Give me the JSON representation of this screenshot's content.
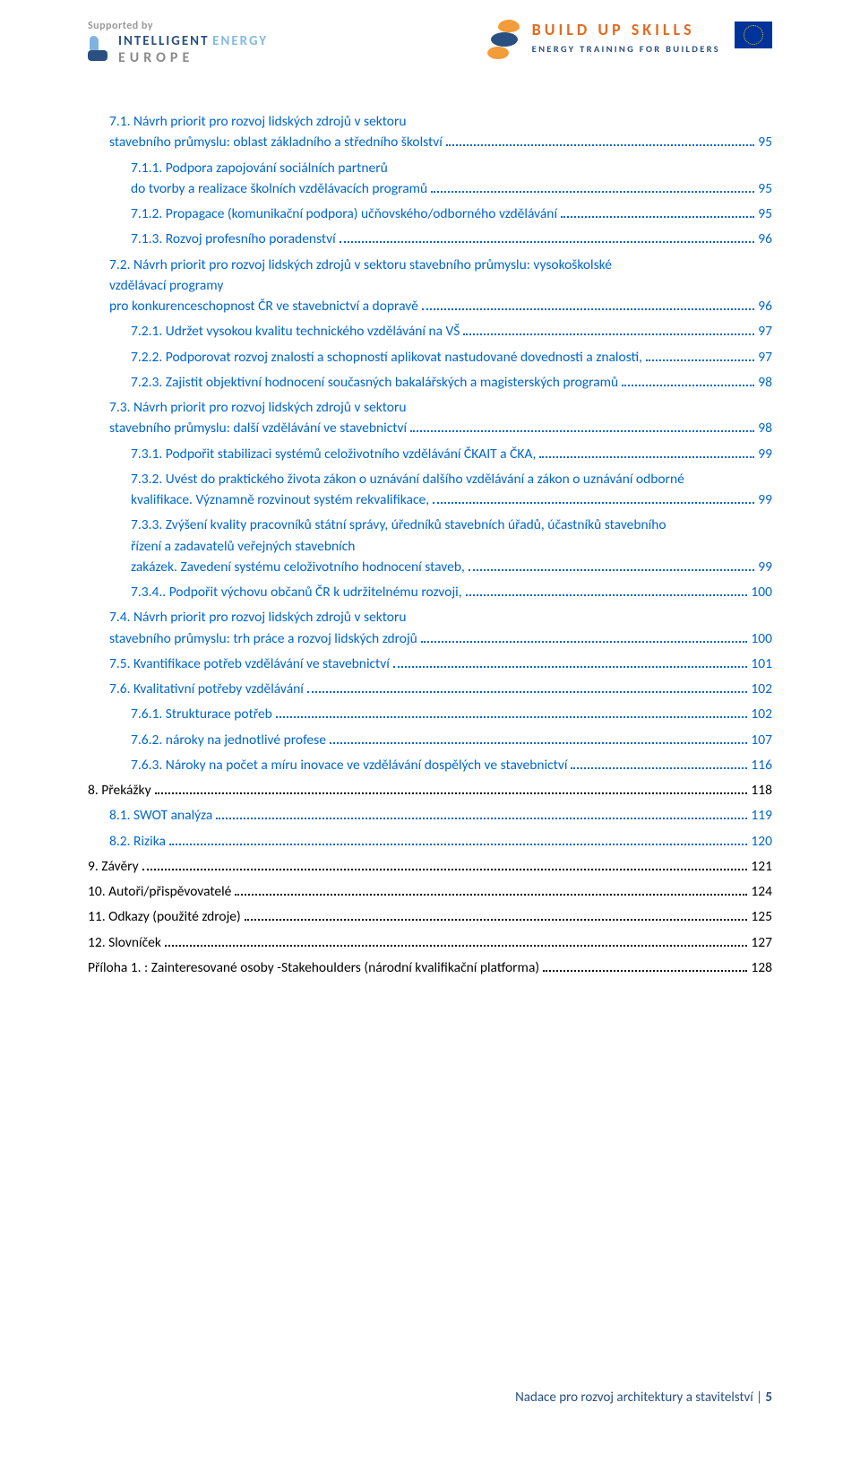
{
  "header": {
    "supported": "Supported by",
    "intelligent": "INTELLIGENT",
    "energy": "ENERGY",
    "europe": "EUROPE",
    "bus_title": "BUILD UP SKILLS",
    "bus_sub": "ENERGY TRAINING FOR BUILDERS"
  },
  "colors": {
    "link": "#0066cc",
    "text": "#000000",
    "footer": "#2a5082",
    "orange_brand": "#e26b1f",
    "navy_brand": "#2a5082"
  },
  "toc": [
    {
      "indent": 1,
      "blue": true,
      "label": "7.1. Návrh priorit pro rozvoj lidských zdrojů v sektoru stavebního průmyslu: oblast základního a středního školství",
      "page": "95",
      "wrap": true
    },
    {
      "indent": 2,
      "blue": true,
      "label": "7.1.1. Podpora zapojování sociálních partnerů do tvorby a realizace školních vzdělávacích programů",
      "page": "95",
      "wrap": true
    },
    {
      "indent": 2,
      "blue": true,
      "label": "7.1.2. Propagace (komunikační podpora) učňovského/odborného vzdělávání",
      "page": "95"
    },
    {
      "indent": 2,
      "blue": true,
      "label": "7.1.3. Rozvoj profesního poradenství",
      "page": "96"
    },
    {
      "indent": 1,
      "blue": true,
      "label": "7.2. Návrh priorit pro rozvoj lidských zdrojů v sektoru stavebního průmyslu: vysokoškolské vzdělávací programy pro konkurenceschopnost ČR ve stavebnictví a dopravě",
      "page": "96",
      "wrap": true
    },
    {
      "indent": 2,
      "blue": true,
      "label": "7.2.1. Udržet vysokou kvalitu technického vzdělávání na VŠ",
      "page": "97"
    },
    {
      "indent": 2,
      "blue": true,
      "label": "7.2.2. Podporovat rozvoj znalostí a schopností aplikovat nastudované dovednosti a znalosti,",
      "page": "97"
    },
    {
      "indent": 2,
      "blue": true,
      "label": "7.2.3. Zajistit objektivní hodnocení současných bakalářských a magisterských programů",
      "page": "98"
    },
    {
      "indent": 1,
      "blue": true,
      "label": "7.3. Návrh priorit pro rozvoj lidských zdrojů v sektoru stavebního průmyslu: další vzdělávání ve stavebnictví",
      "page": "98",
      "wrap": true
    },
    {
      "indent": 2,
      "blue": true,
      "label": "7.3.1. Podpořit stabilizaci systémů celoživotního vzdělávání ČKAIT a ČKA,",
      "page": "99"
    },
    {
      "indent": 2,
      "blue": true,
      "label": "7.3.2. Uvést do praktického života zákon o uznávání dalšího vzdělávání a zákon o uznávání odborné kvalifikace. Významně rozvinout systém rekvalifikace,",
      "page": "99",
      "wrap": true
    },
    {
      "indent": 2,
      "blue": true,
      "label": "7.3.3. Zvýšení kvality pracovníků státní správy, úředníků stavebních úřadů, účastníků stavebního řízení a zadavatelů veřejných stavebních zakázek. Zavedení systému celoživotního hodnocení staveb,",
      "page": "99",
      "wrap": true
    },
    {
      "indent": 2,
      "blue": true,
      "label": "7.3.4.. Podpořit výchovu občanů ČR k  udržitelnému rozvoji,",
      "page": "100"
    },
    {
      "indent": 1,
      "blue": true,
      "label": "7.4. Návrh priorit pro rozvoj lidských zdrojů v sektoru stavebního průmyslu: trh práce a rozvoj lidských zdrojů",
      "page": "100",
      "wrap": true
    },
    {
      "indent": 1,
      "blue": true,
      "label": "7.5. Kvantifikace potřeb vzdělávání ve stavebnictví",
      "page": "101"
    },
    {
      "indent": 1,
      "blue": true,
      "label": "7.6. Kvalitativní potřeby vzdělávání",
      "page": "102"
    },
    {
      "indent": 2,
      "blue": true,
      "label": "7.6.1. Strukturace potřeb",
      "page": "102"
    },
    {
      "indent": 2,
      "blue": true,
      "label": "7.6.2. nároky na jednotlivé profese",
      "page": "107"
    },
    {
      "indent": 2,
      "blue": true,
      "label": "7.6.3. Nároky na počet a míru inovace ve vzdělávání dospělých ve stavebnictví",
      "page": "116"
    },
    {
      "indent": 0,
      "blue": false,
      "label": "8. Překážky",
      "page": "118"
    },
    {
      "indent": 1,
      "blue": true,
      "label": "8.1. SWOT analýza",
      "page": "119"
    },
    {
      "indent": 1,
      "blue": true,
      "label": "8.2. Rizika",
      "page": "120"
    },
    {
      "indent": 0,
      "blue": false,
      "label": "9. Závěry",
      "page": "121"
    },
    {
      "indent": 0,
      "blue": false,
      "label": "10.  Autoři/přispěvovatelé",
      "page": "124"
    },
    {
      "indent": 0,
      "blue": false,
      "label": "11. Odkazy (použité zdroje)",
      "page": "125"
    },
    {
      "indent": 0,
      "blue": false,
      "label": "12.  Slovníček",
      "page": "127"
    },
    {
      "indent": 0,
      "blue": false,
      "label": "Příloha 1. : Zainteresované osoby -Stakehoulders  (národní kvalifikační platforma)",
      "page": "128"
    }
  ],
  "footer": {
    "text": "Nadace pro rozvoj architektury a stavitelství | ",
    "page": "5"
  }
}
